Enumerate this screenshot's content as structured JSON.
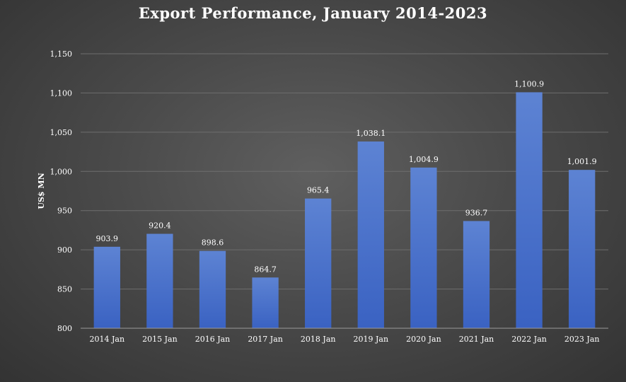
{
  "chart_data": {
    "type": "bar",
    "title": "Export Performance, January 2014-2023",
    "xlabel": "",
    "ylabel": "US$ MN",
    "categories": [
      "2014 Jan",
      "2015 Jan",
      "2016 Jan",
      "2017 Jan",
      "2018 Jan",
      "2019 Jan",
      "2020 Jan",
      "2021 Jan",
      "2022 Jan",
      "2023 Jan"
    ],
    "values": [
      903.9,
      920.4,
      898.6,
      864.7,
      965.4,
      1038.1,
      1004.9,
      936.7,
      1100.9,
      1001.9
    ],
    "data_labels": [
      "903.9",
      "920.4",
      "898.6",
      "864.7",
      "965.4",
      "1,038.1",
      "1,004.9",
      "936.7",
      "1,100.9",
      "1,001.9"
    ],
    "ylim": [
      800,
      1150
    ],
    "yticks": [
      800,
      850,
      900,
      950,
      1000,
      1050,
      1100,
      1150
    ],
    "ytick_labels": [
      "800",
      "850",
      "900",
      "950",
      "1,000",
      "1,050",
      "1,100",
      "1,150"
    ],
    "grid": true,
    "legend": "none",
    "colors": {
      "bar_top": "#5d83d3",
      "bar_bottom": "#3a62c2",
      "gridline": "#6e6e6e",
      "axis": "#9a9a9a",
      "text": "#ffffff"
    }
  }
}
